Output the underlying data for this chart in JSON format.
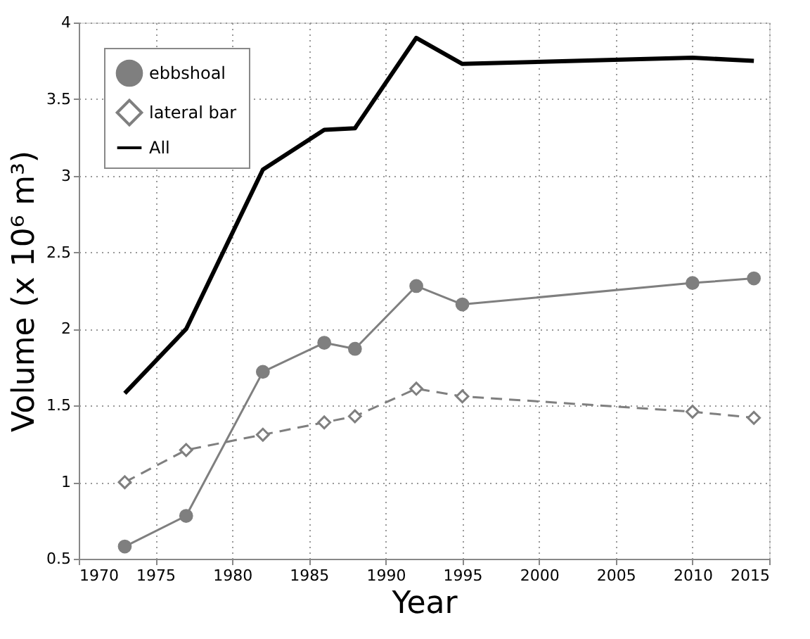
{
  "chart_data": {
    "type": "line",
    "xlabel": "Year",
    "ylabel": "Volume (x 10⁶ m³)",
    "x": [
      1973,
      1977,
      1982,
      1986,
      1988,
      1992,
      1995,
      2010,
      2014
    ],
    "series": [
      {
        "name": "ebbshoal",
        "color": "#7f7f7f",
        "marker": "circle",
        "line_style": "solid",
        "values": [
          0.58,
          0.78,
          1.72,
          1.91,
          1.87,
          2.28,
          2.16,
          2.3,
          2.33
        ]
      },
      {
        "name": "lateral bar",
        "color": "#7f7f7f",
        "marker": "diamond",
        "line_style": "dashed",
        "values": [
          1.0,
          1.21,
          1.31,
          1.39,
          1.43,
          1.61,
          1.56,
          1.46,
          1.42
        ]
      },
      {
        "name": "All",
        "color": "#000000",
        "marker": "none",
        "line_style": "solid",
        "values": [
          1.58,
          2.0,
          3.04,
          3.3,
          3.31,
          3.9,
          3.73,
          3.77,
          3.75
        ]
      }
    ],
    "xlim": [
      1970,
      2015
    ],
    "xticks": [
      1970,
      1975,
      1980,
      1985,
      1990,
      1995,
      2000,
      2005,
      2010,
      2015
    ],
    "ylim": [
      0.5,
      4
    ],
    "yticks": [
      0.5,
      1,
      1.5,
      2,
      2.5,
      3,
      3.5,
      4
    ],
    "grid": true,
    "legend": "top left"
  }
}
